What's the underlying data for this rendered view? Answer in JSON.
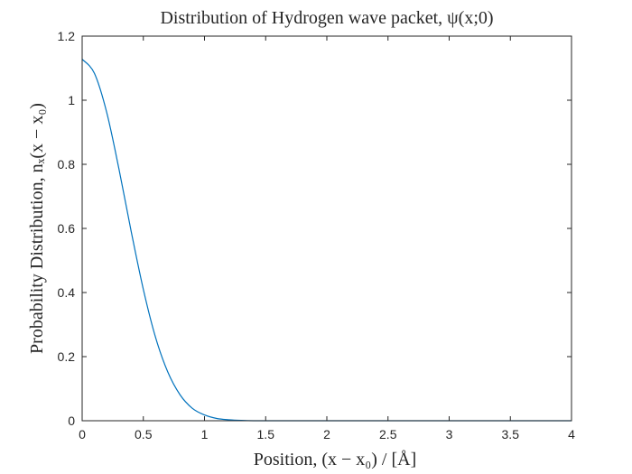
{
  "chart_data": {
    "type": "line",
    "title": "Distribution of Hydrogen wave packet, ψ(x;0)",
    "xlabel": "Position, (x − x₀) / [Å]",
    "ylabel": "Probability Distribution, nₓ(x − x₀)",
    "xlim": [
      0,
      4
    ],
    "ylim": [
      0,
      1.2
    ],
    "x_ticks": [
      "0",
      "0.5",
      "1",
      "1.5",
      "2",
      "2.5",
      "3",
      "3.5",
      "4"
    ],
    "y_ticks": [
      "0",
      "0.2",
      "0.4",
      "0.6",
      "0.8",
      "1",
      "1.2"
    ],
    "grid": false,
    "series": [
      {
        "color": "#0072BD",
        "x": [
          0,
          0.1,
          0.2,
          0.3,
          0.4,
          0.5,
          0.6,
          0.7,
          0.8,
          0.9,
          1.0,
          1.1,
          1.2,
          1.3,
          1.4,
          1.5,
          2.0,
          2.5,
          3.0,
          3.5,
          4.0
        ],
        "y": [
          1.128,
          1.084,
          0.963,
          0.787,
          0.592,
          0.41,
          0.26,
          0.152,
          0.081,
          0.039,
          0.018,
          0.007,
          0.003,
          0.001,
          0.0,
          0.0,
          0.0,
          0.0,
          0.0,
          0.0,
          0.0
        ]
      }
    ]
  }
}
